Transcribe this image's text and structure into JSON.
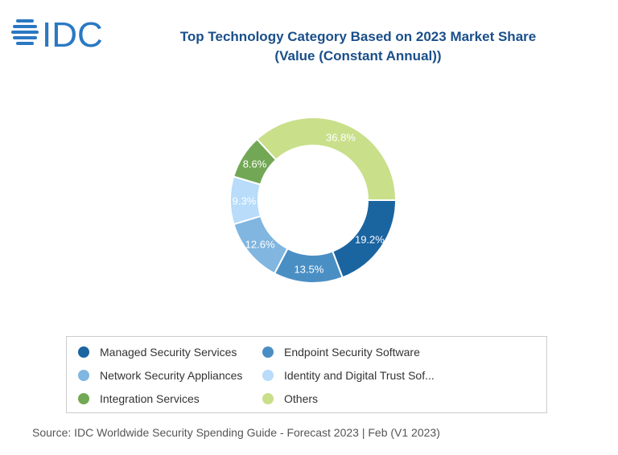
{
  "logo": "IDC",
  "chart_data": {
    "type": "pie",
    "variant": "donut",
    "title": "Top Technology Category Based on 2023 Market Share",
    "subtitle": "(Value (Constant Annual))",
    "categories": [
      "Managed Security Services",
      "Endpoint Security Software",
      "Network Security Appliances",
      "Identity and Digital Trust Sof...",
      "Integration Services",
      "Others"
    ],
    "values": [
      19.2,
      13.5,
      12.6,
      9.3,
      8.6,
      36.8
    ],
    "labels": [
      "19.2%",
      "13.5%",
      "12.6%",
      "9.3%",
      "8.6%",
      "36.8%"
    ],
    "colors": [
      "#1a64a0",
      "#4a8fc4",
      "#80b6e0",
      "#b8dcfa",
      "#72a855",
      "#c9df8a"
    ],
    "legend_placement": "bottom"
  },
  "source": "Source: IDC Worldwide Security Spending Guide - Forecast 2023 | Feb (V1 2023)"
}
